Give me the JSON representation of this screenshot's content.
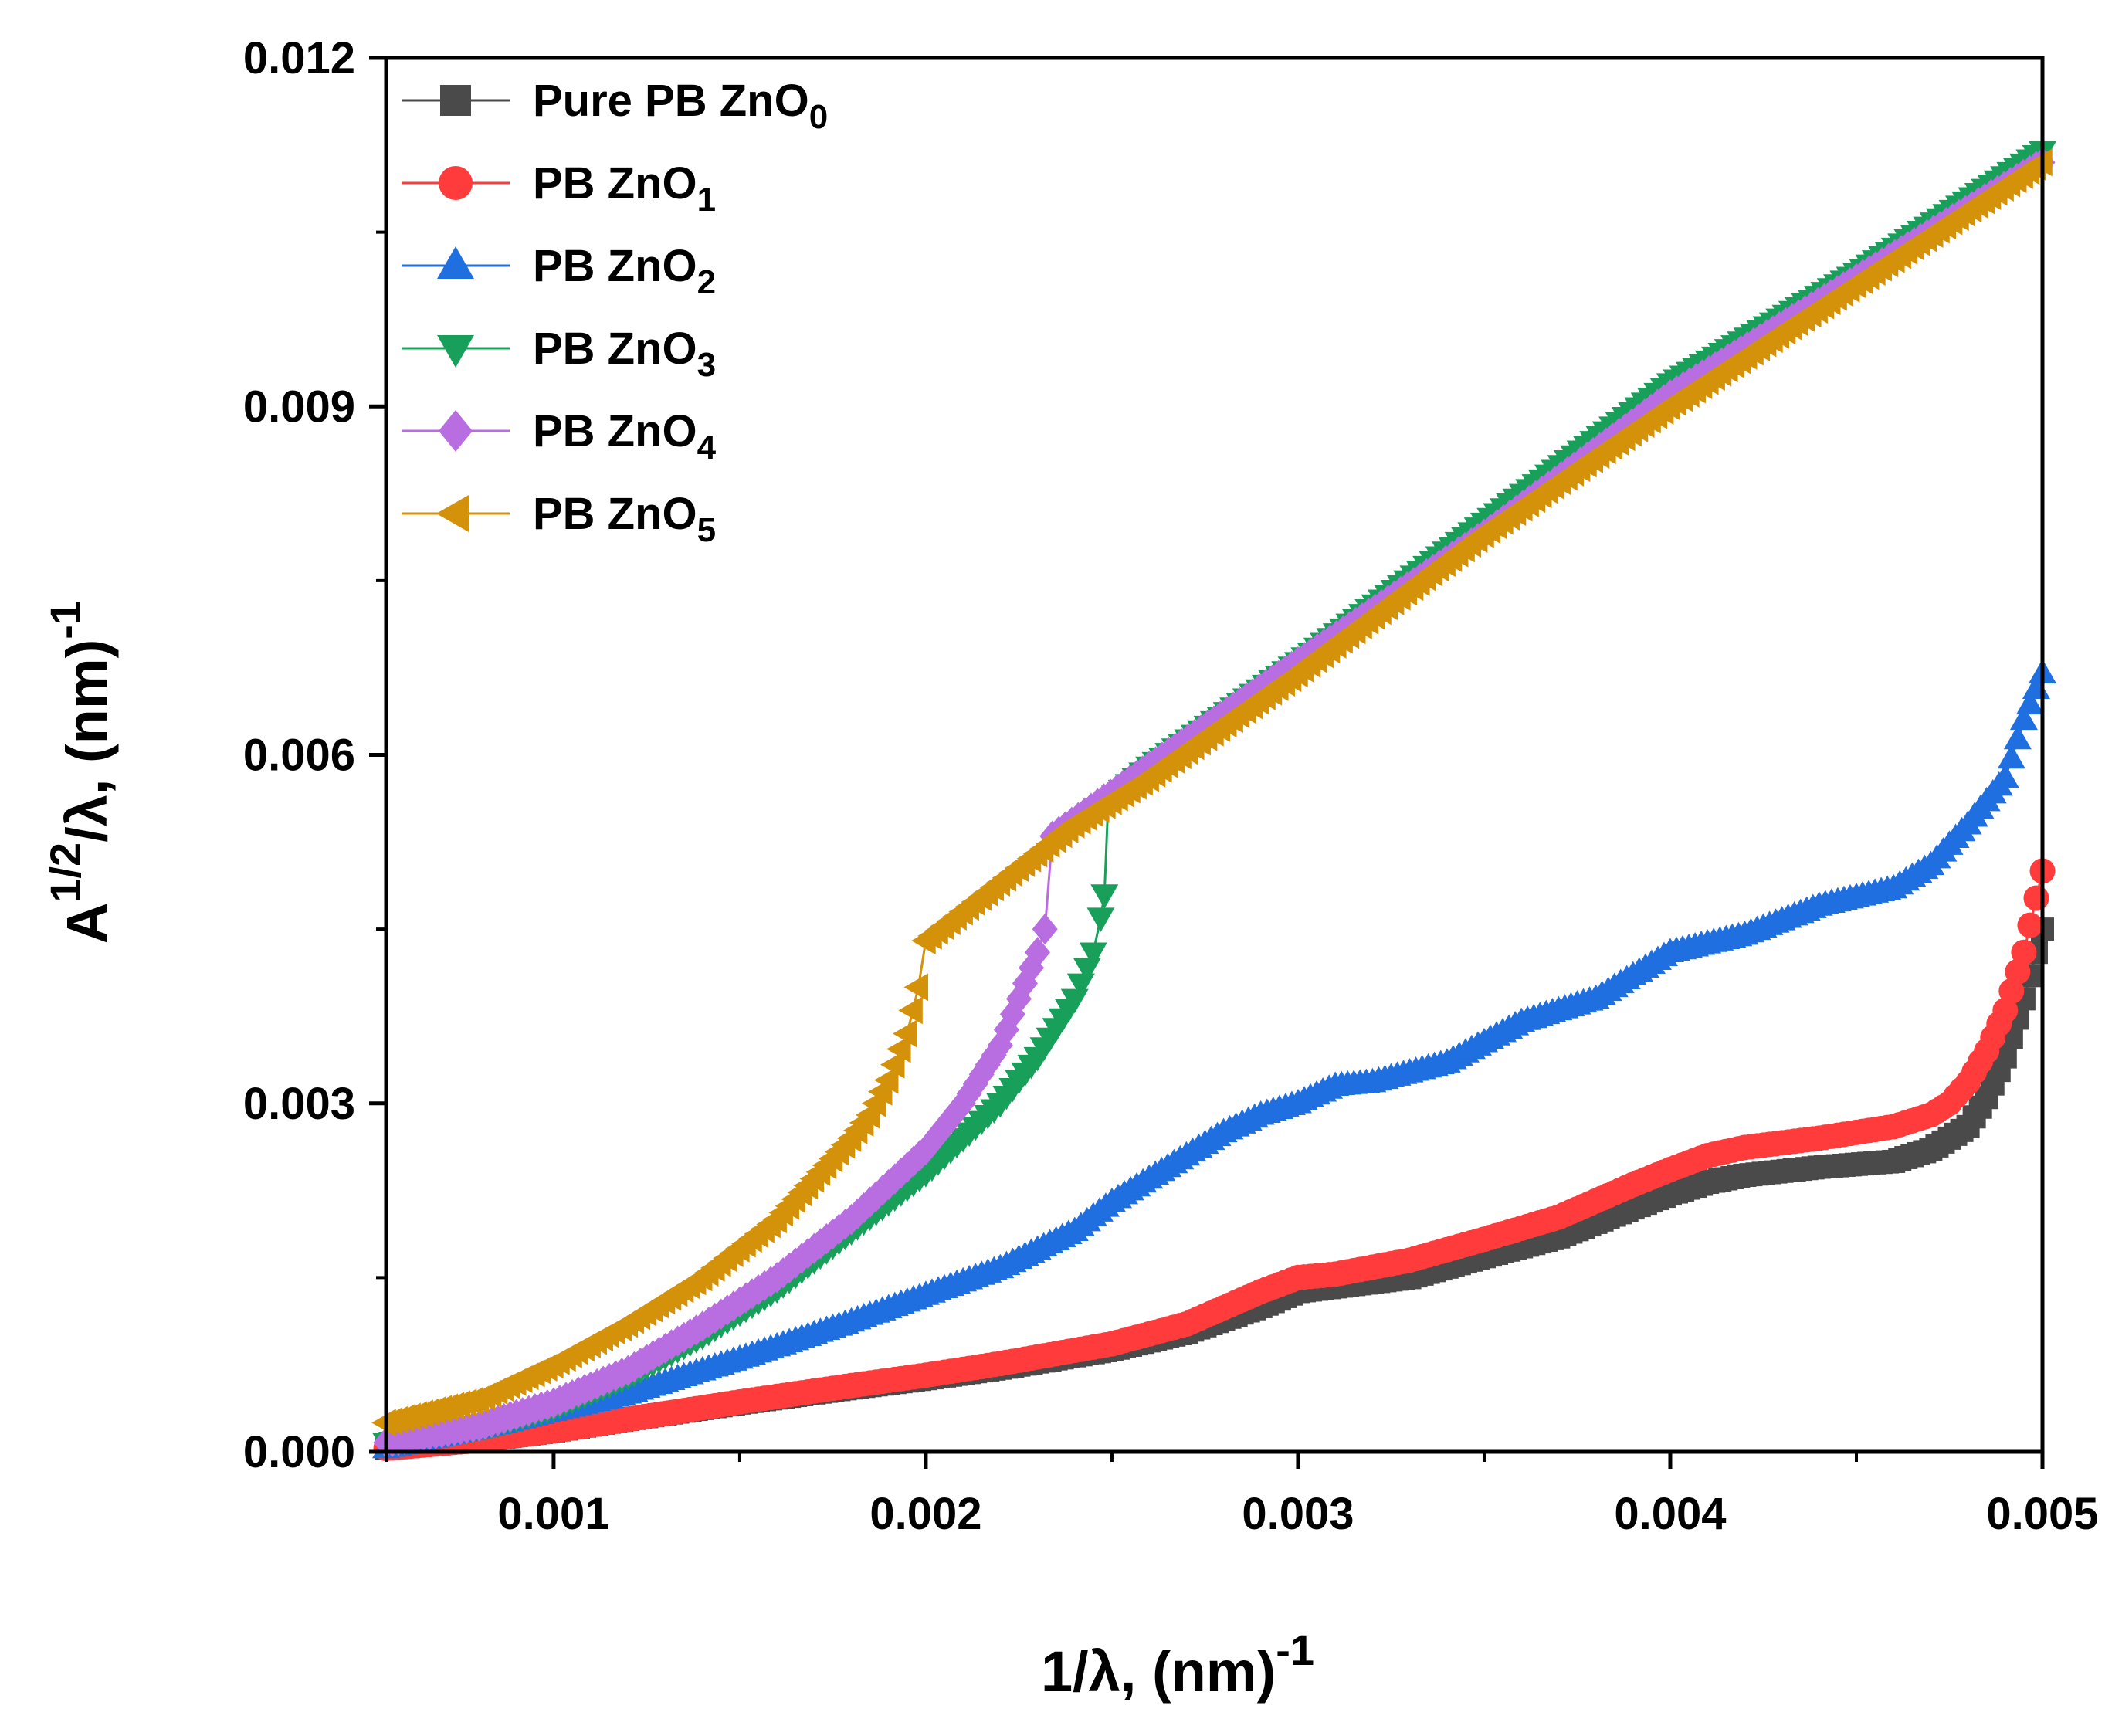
{
  "chart_data": {
    "type": "scatter",
    "title": "",
    "xlabel": {
      "base": "1/λ, (nm)",
      "sup": "-1"
    },
    "ylabel": {
      "base": "A",
      "sup": "1/2",
      "mid": "/λ, (nm)",
      "sup2": "-1"
    },
    "xlim": [
      0.00055,
      0.005
    ],
    "ylim": [
      0.0,
      0.012
    ],
    "x_ticks": [
      0.001,
      0.002,
      0.003,
      0.004,
      0.005
    ],
    "x_tick_labels": [
      "0.001",
      "0.002",
      "0.003",
      "0.004",
      "0.005"
    ],
    "y_ticks": [
      0.0,
      0.003,
      0.006,
      0.009,
      0.012
    ],
    "y_tick_labels": [
      "0.000",
      "0.003",
      "0.006",
      "0.009",
      "0.012"
    ],
    "grid": false,
    "legend_position": "top-left",
    "series": [
      {
        "name": "Pure PB ZnO",
        "sub": "0",
        "color": "#4a4a4a",
        "marker": "square",
        "points": [
          [
            0.00055,
            3e-05
          ],
          [
            0.0008,
            0.0001
          ],
          [
            0.001,
            0.00018
          ],
          [
            0.0012,
            0.00028
          ],
          [
            0.0015,
            0.00042
          ],
          [
            0.0018,
            0.00055
          ],
          [
            0.002,
            0.00063
          ],
          [
            0.0022,
            0.00072
          ],
          [
            0.0025,
            0.00088
          ],
          [
            0.0027,
            0.00103
          ],
          [
            0.0029,
            0.00125
          ],
          [
            0.003,
            0.00138
          ],
          [
            0.0031,
            0.00142
          ],
          [
            0.0033,
            0.0015
          ],
          [
            0.0035,
            0.00168
          ],
          [
            0.0037,
            0.00185
          ],
          [
            0.0039,
            0.0021
          ],
          [
            0.004,
            0.00222
          ],
          [
            0.0041,
            0.00232
          ],
          [
            0.0042,
            0.00238
          ],
          [
            0.0044,
            0.00245
          ],
          [
            0.0046,
            0.0025
          ],
          [
            0.0047,
            0.0026
          ],
          [
            0.00475,
            0.0027
          ],
          [
            0.0048,
            0.0028
          ],
          [
            0.00485,
            0.00305
          ],
          [
            0.0049,
            0.0034
          ],
          [
            0.00495,
            0.0039
          ],
          [
            0.005,
            0.0045
          ]
        ]
      },
      {
        "name": "PB ZnO",
        "sub": "1",
        "color": "#ff3b3b",
        "marker": "circle",
        "points": [
          [
            0.00055,
            3e-05
          ],
          [
            0.0008,
            0.0001
          ],
          [
            0.001,
            0.00018
          ],
          [
            0.0012,
            0.00028
          ],
          [
            0.0015,
            0.00043
          ],
          [
            0.0018,
            0.00057
          ],
          [
            0.002,
            0.00066
          ],
          [
            0.0022,
            0.00076
          ],
          [
            0.0025,
            0.00093
          ],
          [
            0.0027,
            0.0011
          ],
          [
            0.0029,
            0.00138
          ],
          [
            0.003,
            0.0015
          ],
          [
            0.0031,
            0.00153
          ],
          [
            0.0033,
            0.00165
          ],
          [
            0.0035,
            0.00183
          ],
          [
            0.0037,
            0.00202
          ],
          [
            0.0039,
            0.0023
          ],
          [
            0.004,
            0.00243
          ],
          [
            0.0041,
            0.00255
          ],
          [
            0.0042,
            0.00262
          ],
          [
            0.0044,
            0.0027
          ],
          [
            0.0046,
            0.0028
          ],
          [
            0.0047,
            0.0029
          ],
          [
            0.00475,
            0.003
          ],
          [
            0.0048,
            0.00318
          ],
          [
            0.00485,
            0.00345
          ],
          [
            0.0049,
            0.0038
          ],
          [
            0.00495,
            0.0043
          ],
          [
            0.005,
            0.005
          ]
        ]
      },
      {
        "name": "PB ZnO",
        "sub": "2",
        "color": "#1f6fe0",
        "marker": "triangle-up",
        "points": [
          [
            0.00055,
            3e-05
          ],
          [
            0.0008,
            0.0002
          ],
          [
            0.001,
            0.00035
          ],
          [
            0.0012,
            0.0005
          ],
          [
            0.0015,
            0.0008
          ],
          [
            0.0018,
            0.00112
          ],
          [
            0.002,
            0.00135
          ],
          [
            0.0022,
            0.00158
          ],
          [
            0.0024,
            0.0019
          ],
          [
            0.0025,
            0.00215
          ],
          [
            0.0026,
            0.00235
          ],
          [
            0.0027,
            0.00255
          ],
          [
            0.0028,
            0.00275
          ],
          [
            0.0029,
            0.0029
          ],
          [
            0.003,
            0.003
          ],
          [
            0.0031,
            0.00315
          ],
          [
            0.0032,
            0.00318
          ],
          [
            0.0034,
            0.00335
          ],
          [
            0.0036,
            0.0037
          ],
          [
            0.0038,
            0.0039
          ],
          [
            0.004,
            0.0043
          ],
          [
            0.0042,
            0.00445
          ],
          [
            0.0044,
            0.0047
          ],
          [
            0.0046,
            0.00485
          ],
          [
            0.0047,
            0.00505
          ],
          [
            0.0048,
            0.0054
          ],
          [
            0.0049,
            0.0058
          ],
          [
            0.00495,
            0.0063
          ],
          [
            0.005,
            0.0067
          ]
        ]
      },
      {
        "name": "PB ZnO",
        "sub": "3",
        "color": "#18a05a",
        "marker": "triangle-down",
        "points": [
          [
            0.00055,
            8e-05
          ],
          [
            0.0008,
            0.0002
          ],
          [
            0.001,
            0.00038
          ],
          [
            0.0012,
            0.00065
          ],
          [
            0.0014,
            0.001
          ],
          [
            0.0016,
            0.0014
          ],
          [
            0.0018,
            0.0019
          ],
          [
            0.002,
            0.0024
          ],
          [
            0.0022,
            0.003
          ],
          [
            0.0023,
            0.0034
          ],
          [
            0.0024,
            0.0039
          ],
          [
            0.00245,
            0.0043
          ],
          [
            0.00247,
            0.0046
          ],
          [
            0.00248,
            0.0048
          ],
          [
            0.00249,
            0.0056
          ],
          [
            0.0026,
            0.0059
          ],
          [
            0.003,
            0.0068
          ],
          [
            0.0035,
            0.008
          ],
          [
            0.004,
            0.0092
          ],
          [
            0.0045,
            0.01015
          ],
          [
            0.005,
            0.0112
          ]
        ]
      },
      {
        "name": "PB ZnO",
        "sub": "4",
        "color": "#b86ee0",
        "marker": "diamond",
        "points": [
          [
            0.00055,
            8e-05
          ],
          [
            0.0008,
            0.00022
          ],
          [
            0.001,
            0.00042
          ],
          [
            0.0012,
            0.0007
          ],
          [
            0.0014,
            0.00108
          ],
          [
            0.0016,
            0.0015
          ],
          [
            0.0018,
            0.002
          ],
          [
            0.002,
            0.0026
          ],
          [
            0.0021,
            0.003
          ],
          [
            0.0022,
            0.0035
          ],
          [
            0.00225,
            0.0039
          ],
          [
            0.0023,
            0.0043
          ],
          [
            0.00232,
            0.0045
          ],
          [
            0.00234,
            0.0053
          ],
          [
            0.0026,
            0.0059
          ],
          [
            0.003,
            0.0068
          ],
          [
            0.0035,
            0.0079
          ],
          [
            0.004,
            0.0091
          ],
          [
            0.0045,
            0.0101
          ],
          [
            0.005,
            0.0111
          ]
        ]
      },
      {
        "name": "PB ZnO",
        "sub": "5",
        "color": "#d4920a",
        "marker": "triangle-left",
        "points": [
          [
            0.00055,
            0.00025
          ],
          [
            0.0008,
            0.00045
          ],
          [
            0.001,
            0.00075
          ],
          [
            0.0012,
            0.0011
          ],
          [
            0.0014,
            0.0015
          ],
          [
            0.0016,
            0.002
          ],
          [
            0.0018,
            0.0027
          ],
          [
            0.00185,
            0.0029
          ],
          [
            0.0019,
            0.0032
          ],
          [
            0.00195,
            0.0036
          ],
          [
            0.00198,
            0.004
          ],
          [
            0.002,
            0.0044
          ],
          [
            0.0022,
            0.0049
          ],
          [
            0.0024,
            0.0054
          ],
          [
            0.0026,
            0.0058
          ],
          [
            0.003,
            0.0067
          ],
          [
            0.0035,
            0.0079
          ],
          [
            0.004,
            0.009
          ],
          [
            0.0045,
            0.01005
          ],
          [
            0.005,
            0.0111
          ]
        ]
      }
    ]
  }
}
